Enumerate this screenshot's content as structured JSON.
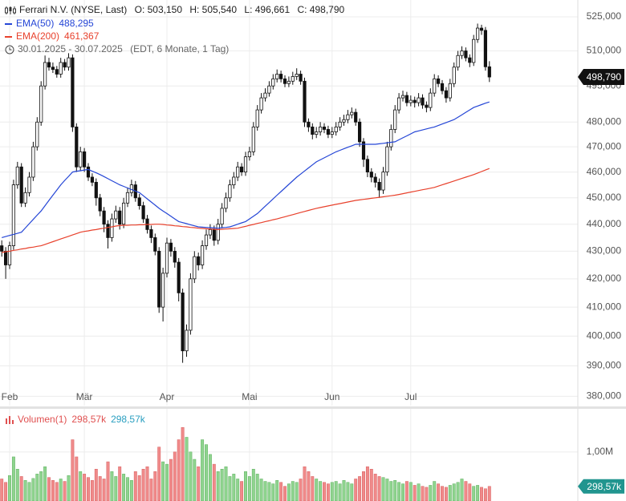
{
  "chart_data": [
    {
      "type": "candlestick",
      "title": "Ferrari N.V. (NYSE, Last)",
      "header_values": [
        "O: 503,150",
        "H: 505,540",
        "L: 496,661",
        "C: 498,790"
      ],
      "period": "30.01.2025 - 30.07.2025",
      "period_note": "(EDT, 6 Monate, 1 Tag)",
      "categories": [
        null,
        null,
        "Feb",
        null,
        null,
        null,
        null,
        null,
        null,
        null,
        null,
        null,
        null,
        null,
        null,
        null,
        null,
        null,
        null,
        null,
        null,
        "Mär",
        null,
        null,
        null,
        null,
        null,
        null,
        null,
        null,
        null,
        null,
        null,
        null,
        null,
        null,
        null,
        null,
        null,
        null,
        null,
        null,
        "Apr",
        null,
        null,
        null,
        null,
        null,
        null,
        null,
        null,
        null,
        null,
        null,
        null,
        null,
        null,
        null,
        null,
        null,
        null,
        null,
        null,
        "Mai",
        null,
        null,
        null,
        null,
        null,
        null,
        null,
        null,
        null,
        null,
        null,
        null,
        null,
        null,
        null,
        null,
        null,
        null,
        null,
        null,
        "Jun",
        null,
        null,
        null,
        null,
        null,
        null,
        null,
        null,
        null,
        null,
        null,
        null,
        null,
        null,
        null,
        null,
        null,
        null,
        null,
        "Jul",
        null,
        null,
        null,
        null,
        null,
        null,
        null,
        null,
        null,
        null,
        null,
        null,
        null,
        null,
        null,
        null,
        null,
        null,
        null,
        null
      ],
      "open": [
        432,
        430,
        425,
        432,
        455,
        462,
        448,
        452,
        458,
        470,
        480,
        495,
        505,
        503,
        502,
        500,
        505,
        503,
        507,
        478,
        462,
        468,
        462,
        458,
        456,
        450,
        445,
        440,
        435,
        442,
        445,
        440,
        448,
        452,
        455,
        450,
        447,
        442,
        438,
        435,
        430,
        410,
        422,
        433,
        430,
        426,
        415,
        395,
        402,
        420,
        428,
        425,
        432,
        436,
        438,
        434,
        440,
        446,
        450,
        455,
        458,
        462,
        460,
        466,
        468,
        478,
        485,
        490,
        492,
        495,
        498,
        500,
        498,
        496,
        497,
        499,
        500,
        497,
        480,
        478,
        475,
        476,
        478,
        477,
        475,
        476,
        478,
        480,
        481,
        483,
        484,
        480,
        472,
        465,
        460,
        458,
        456,
        453,
        460,
        470,
        477,
        485,
        490,
        491,
        488,
        489,
        488,
        490,
        487,
        486,
        492,
        498,
        496,
        493,
        490,
        496,
        503,
        508,
        510,
        507,
        505,
        515,
        520,
        519,
        503.15
      ],
      "high": [
        434,
        431.5,
        433.5,
        457,
        464,
        463.5,
        454,
        460,
        472,
        482,
        497,
        508,
        507,
        505,
        503.5,
        507,
        506.5,
        509,
        508.5,
        479.5,
        470,
        469.5,
        463.5,
        459.5,
        457.5,
        451.5,
        446.5,
        441.5,
        444,
        447,
        446.5,
        450,
        454,
        457,
        456.5,
        451.5,
        448.5,
        443.5,
        439.5,
        436.5,
        431.5,
        424,
        435,
        434.5,
        431.5,
        427.5,
        416.5,
        404,
        422,
        430,
        429.5,
        434,
        438,
        440,
        439.5,
        442,
        448,
        452,
        457,
        460,
        464,
        463.5,
        468,
        470,
        480,
        487,
        492,
        494,
        497,
        500,
        502,
        501.5,
        499.5,
        499,
        501,
        502.5,
        501.5,
        498.5,
        481.5,
        479.5,
        478,
        480,
        479.5,
        478.5,
        478,
        480,
        482,
        483,
        485,
        486,
        485.5,
        481.5,
        473.5,
        466.5,
        461.5,
        459.5,
        457.5,
        462,
        472,
        479,
        487,
        492,
        493,
        492.5,
        491,
        490.5,
        492,
        491.5,
        488.5,
        494,
        500,
        499.5,
        497.5,
        494.5,
        498,
        505,
        510,
        512,
        511.5,
        508.5,
        517,
        522,
        521.5,
        520.5,
        505.54
      ],
      "low": [
        428,
        420,
        423.5,
        430.5,
        453.5,
        446.5,
        446.5,
        450.5,
        456.5,
        468.5,
        478.5,
        493.5,
        501.5,
        500.5,
        498.5,
        498.5,
        501.5,
        501.5,
        476,
        460,
        460.5,
        460,
        456.5,
        454.5,
        447,
        443,
        437,
        431,
        433.5,
        440.5,
        438,
        438.5,
        446.5,
        450.5,
        448.5,
        445.5,
        440.5,
        436.5,
        433,
        428.5,
        408,
        405,
        420.5,
        428,
        424,
        412,
        391,
        393,
        400.5,
        418.5,
        423,
        423.5,
        430.5,
        434.5,
        432,
        432.5,
        438.5,
        444.5,
        448.5,
        453.5,
        456.5,
        458.5,
        458.5,
        464.5,
        466.5,
        476.5,
        483.5,
        488.5,
        490.5,
        493.5,
        496.5,
        496.5,
        494.5,
        494.5,
        495.5,
        497.5,
        495.5,
        478,
        476,
        473,
        473.5,
        474.5,
        475.5,
        473.5,
        473.5,
        474.5,
        476.5,
        478.5,
        479.5,
        481.5,
        478.5,
        470,
        462,
        458,
        456,
        454,
        450,
        451.5,
        458.5,
        468.5,
        475.5,
        483.5,
        488.5,
        486.5,
        486.5,
        486,
        486.5,
        485.5,
        484,
        484.5,
        490.5,
        494.5,
        491.5,
        488,
        488.5,
        494.5,
        501.5,
        506.5,
        505.5,
        503,
        503.5,
        513.5,
        517,
        501.5,
        496.661
      ],
      "close": [
        430,
        425,
        432,
        455,
        462,
        448,
        452,
        458,
        470,
        480,
        495,
        505,
        503,
        502,
        500,
        505,
        503,
        507,
        478,
        462,
        468,
        462,
        458,
        456,
        450,
        445,
        440,
        435,
        442,
        445,
        440,
        448,
        452,
        455,
        450,
        447,
        442,
        438,
        435,
        430,
        410,
        422,
        433,
        430,
        426,
        415,
        395,
        402,
        420,
        428,
        425,
        432,
        436,
        438,
        434,
        440,
        446,
        450,
        455,
        458,
        462,
        460,
        466,
        468,
        478,
        485,
        490,
        492,
        495,
        498,
        500,
        498,
        496,
        497,
        499,
        500,
        497,
        480,
        478,
        475,
        476,
        478,
        477,
        475,
        476,
        478,
        480,
        481,
        483,
        484,
        480,
        472,
        465,
        460,
        458,
        456,
        453,
        460,
        470,
        477,
        485,
        490,
        491,
        488,
        489,
        488,
        490,
        487,
        486,
        492,
        498,
        496,
        493,
        490,
        496,
        503,
        508,
        510,
        507,
        505,
        515,
        520,
        519,
        503.15,
        498.79
      ],
      "last_value_label": "498,790",
      "candle_color": "#111111",
      "series": [
        {
          "name": "EMA(50)",
          "color": "#2546d6",
          "last_label": "488,295",
          "values": [
            435,
            435.4,
            435.8,
            436.2,
            436.6,
            437,
            438.6,
            440.2,
            441.8,
            443.4,
            445,
            447,
            449,
            451,
            453,
            455,
            456.7,
            458.3,
            460,
            460.3,
            460.5,
            460.8,
            461,
            460.3,
            459.7,
            459,
            458.2,
            457.4,
            456.6,
            455.8,
            455,
            454.4,
            453.8,
            453.2,
            452.6,
            452,
            450.8,
            449.6,
            448.4,
            447.2,
            446,
            445,
            444,
            443,
            442,
            441,
            440.6,
            440.2,
            439.8,
            439.4,
            439,
            438.9,
            438.8,
            438.7,
            438.6,
            438.5,
            438.7,
            438.8,
            439,
            439.5,
            440,
            440.5,
            441,
            442,
            443,
            444,
            445.4,
            446.8,
            448.2,
            449.6,
            451,
            452.4,
            453.8,
            455.2,
            456.6,
            458,
            459.2,
            460.4,
            461.6,
            462.8,
            464,
            464.8,
            465.6,
            466.4,
            467.2,
            468,
            468.6,
            469.2,
            469.8,
            470.4,
            471,
            471,
            471,
            471,
            471,
            471,
            471.2,
            471.4,
            471.6,
            471.8,
            472,
            472.8,
            473.6,
            474.4,
            475.2,
            476,
            476.4,
            476.8,
            477.2,
            477.6,
            478,
            478.6,
            479.2,
            479.8,
            480.4,
            481,
            482,
            483,
            484,
            485,
            486,
            486.6,
            487.2,
            487.8,
            488.3
          ]
        },
        {
          "name": "EMA(200)",
          "color": "#e8412c",
          "last_label": "461,367",
          "values": [
            429.5,
            429.8,
            430,
            430.3,
            430.5,
            430.8,
            431,
            431.3,
            431.5,
            431.8,
            432,
            432.5,
            433,
            433.5,
            434,
            434.5,
            435,
            435.5,
            436,
            436.5,
            437,
            437.3,
            437.5,
            437.8,
            438,
            438.3,
            438.5,
            438.8,
            439,
            439.3,
            439.5,
            439.6,
            439.6,
            439.7,
            439.7,
            439.8,
            439.8,
            439.9,
            439.9,
            440,
            440,
            439.9,
            439.7,
            439.6,
            439.4,
            439.3,
            439.1,
            439,
            438.8,
            438.7,
            438.5,
            438.4,
            438.3,
            438.2,
            438.1,
            438,
            438.1,
            438.2,
            438.3,
            438.4,
            438.5,
            438.9,
            439.2,
            439.6,
            439.9,
            440.3,
            440.6,
            441,
            441.3,
            441.7,
            442,
            442.4,
            442.8,
            443.2,
            443.6,
            444,
            444.4,
            444.8,
            445.2,
            445.6,
            446,
            446.3,
            446.6,
            446.9,
            447.2,
            447.5,
            447.8,
            448.1,
            448.4,
            448.7,
            449,
            449.2,
            449.4,
            449.6,
            449.8,
            450,
            450.2,
            450.4,
            450.6,
            450.8,
            451,
            451.3,
            451.6,
            451.9,
            452.2,
            452.5,
            452.8,
            453.1,
            453.4,
            453.7,
            454,
            454.5,
            455,
            455.5,
            456,
            456.5,
            457,
            457.5,
            458,
            458.5,
            459,
            459.6,
            460.2,
            460.8,
            461.4
          ]
        }
      ],
      "log_scale": true,
      "grid": true,
      "ylim": [
        377,
        532.6
      ],
      "yticks": [
        {
          "value": 525,
          "label": "525,000"
        },
        {
          "value": 510,
          "label": "510,000"
        },
        {
          "value": 495,
          "label": "495,000"
        },
        {
          "value": 480,
          "label": "480,000"
        },
        {
          "value": 470,
          "label": "470,000"
        },
        {
          "value": 460,
          "label": "460,000"
        },
        {
          "value": 450,
          "label": "450,000"
        },
        {
          "value": 440,
          "label": "440,000"
        },
        {
          "value": 430,
          "label": "430,000"
        },
        {
          "value": 420,
          "label": "420,000"
        },
        {
          "value": 410,
          "label": "410,000"
        },
        {
          "value": 400,
          "label": "400,000"
        },
        {
          "value": 390,
          "label": "390,000"
        },
        {
          "value": 380,
          "label": "380,000"
        }
      ]
    },
    {
      "type": "bar",
      "title": "Volumen(1)",
      "legend_values": [
        "298,57k",
        "298,57k"
      ],
      "legend_colors": [
        "#e05050",
        "#2a9fc0"
      ],
      "values": [
        450000,
        380000,
        520000,
        900000,
        650000,
        500000,
        420000,
        380000,
        460000,
        550000,
        600000,
        700000,
        480000,
        420000,
        380000,
        450000,
        400000,
        520000,
        1250000,
        900000,
        600000,
        550000,
        480000,
        420000,
        650000,
        500000,
        450000,
        800000,
        600000,
        500000,
        700000,
        550000,
        480000,
        420000,
        600000,
        520000,
        650000,
        700000,
        450000,
        600000,
        1100000,
        800000,
        750000,
        850000,
        1000000,
        1250000,
        1500000,
        1300000,
        1000000,
        850000,
        700000,
        1250000,
        1150000,
        950000,
        750000,
        600000,
        650000,
        700000,
        500000,
        550000,
        450000,
        400000,
        600000,
        500000,
        650000,
        550000,
        450000,
        400000,
        380000,
        350000,
        420000,
        380000,
        300000,
        350000,
        400000,
        380000,
        450000,
        700000,
        600000,
        500000,
        450000,
        400000,
        380000,
        350000,
        380000,
        400000,
        350000,
        420000,
        380000,
        350000,
        450000,
        500000,
        600000,
        700000,
        650000,
        550000,
        500000,
        480000,
        450000,
        400000,
        420000,
        380000,
        350000,
        400000,
        380000,
        320000,
        350000,
        300000,
        280000,
        320000,
        400000,
        350000,
        300000,
        280000,
        320000,
        350000,
        380000,
        450000,
        400000,
        350000,
        300000,
        320000,
        280000,
        250000,
        298570
      ],
      "last_value_label": "298,57k",
      "up_color": "#8fd48f",
      "down_color": "#f08a8a",
      "tag_color": "#21958f",
      "ylim": [
        0,
        1880000
      ],
      "yticks": [
        {
          "value": 1000000,
          "label": "1,00M"
        }
      ]
    }
  ]
}
